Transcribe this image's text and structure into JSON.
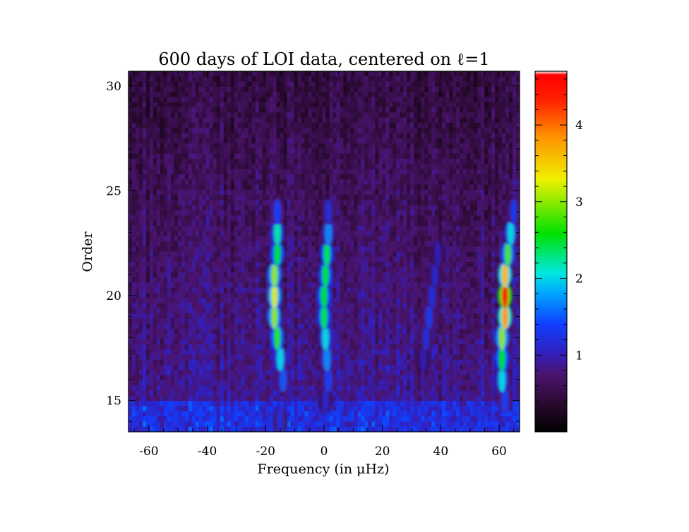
{
  "chart_data": {
    "type": "heatmap",
    "title": "600 days of LOI data, centered on ℓ=1",
    "xlabel": "Frequency (in μHz)",
    "ylabel": "Order",
    "xlim": [
      -67,
      67
    ],
    "ylim": [
      13.5,
      30.7
    ],
    "xticks": [
      -60,
      -40,
      -20,
      0,
      20,
      40,
      60
    ],
    "yticks": [
      15,
      20,
      25,
      30
    ],
    "colorbar": {
      "range": [
        0,
        4.7
      ],
      "ticks": [
        1,
        2,
        3,
        4
      ],
      "colormap": "rainbow (black-purple-blue-cyan-green-yellow-orange-red-white)"
    },
    "ridges": [
      {
        "name": "",
        "x": [
          -15,
          -14,
          -15,
          -16,
          -17,
          -17,
          -17,
          -16,
          -16,
          -16
        ],
        "y": [
          14,
          16,
          17,
          18,
          19,
          20,
          21,
          22,
          23,
          24
        ],
        "peak": [
          1.2,
          1.5,
          2.0,
          2.7,
          3.0,
          3.2,
          3.0,
          2.6,
          2.2,
          1.4
        ]
      },
      {
        "name": "",
        "x": [
          0.5,
          1.5,
          1.0,
          0.5,
          0.0,
          0.0,
          0.5,
          1.0,
          1.5,
          1.5
        ],
        "y": [
          15,
          16,
          17,
          18,
          19,
          20,
          21,
          22,
          23,
          24
        ],
        "peak": [
          1.1,
          1.4,
          1.7,
          2.0,
          2.4,
          2.6,
          2.5,
          2.4,
          1.7,
          1.2
        ]
      },
      {
        "name": "",
        "x": [
          34,
          35,
          36,
          37,
          38,
          39
        ],
        "y": [
          17,
          18,
          19,
          20,
          21,
          22
        ],
        "peak": [
          1.0,
          1.2,
          1.3,
          1.2,
          1.1,
          1.0
        ]
      },
      {
        "name": "",
        "x": [
          62,
          61,
          61,
          61,
          62,
          62,
          62,
          63,
          64,
          65
        ],
        "y": [
          15,
          16,
          17,
          18,
          19,
          20,
          21,
          22,
          23,
          24
        ],
        "peak": [
          1.4,
          2.0,
          2.6,
          3.0,
          3.8,
          4.6,
          3.6,
          2.8,
          2.0,
          1.3
        ]
      }
    ]
  }
}
